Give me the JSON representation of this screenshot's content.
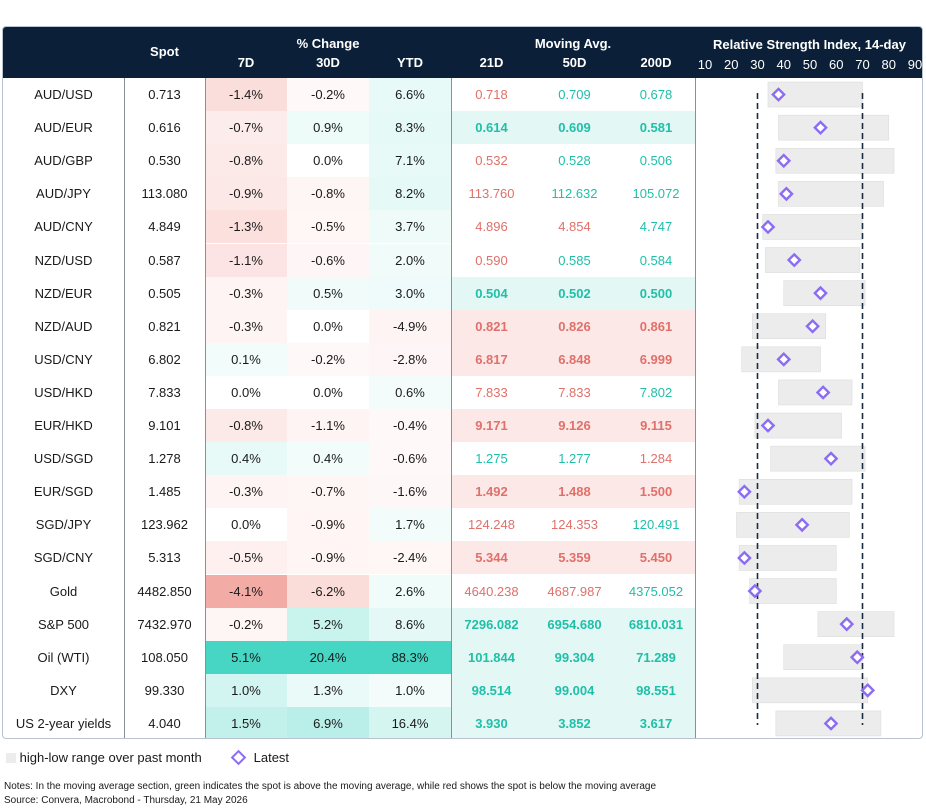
{
  "header": {
    "spot": "Spot",
    "pct_change": "% Change",
    "d7": "7D",
    "d30": "30D",
    "ytd": "YTD",
    "moving_avg": "Moving Avg.",
    "ma21": "21D",
    "ma50": "50D",
    "ma200": "200D",
    "rsi_title": "Relative Strength Index, 14-day",
    "rsi_ticks": [
      "10",
      "20",
      "30",
      "40",
      "50",
      "60",
      "70",
      "80",
      "90"
    ]
  },
  "colors": {
    "header_bg": "#0b2038",
    "ma_up": "#1fbfa8",
    "ma_down": "#e0706a",
    "rsi_range": "#ececec",
    "rsi_marker": "#8b6cf2"
  },
  "rows": [
    {
      "name": "AUD/USD",
      "spot": "0.713",
      "d7": "-1.4%",
      "d30": "-0.2%",
      "ytd": "6.6%",
      "ma21": "0.718",
      "ma50": "0.709",
      "ma200": "0.678"
    },
    {
      "name": "AUD/EUR",
      "spot": "0.616",
      "d7": "-0.7%",
      "d30": "0.9%",
      "ytd": "8.3%",
      "ma21": "0.614",
      "ma50": "0.609",
      "ma200": "0.581"
    },
    {
      "name": "AUD/GBP",
      "spot": "0.530",
      "d7": "-0.8%",
      "d30": "0.0%",
      "ytd": "7.1%",
      "ma21": "0.532",
      "ma50": "0.528",
      "ma200": "0.506"
    },
    {
      "name": "AUD/JPY",
      "spot": "113.080",
      "d7": "-0.9%",
      "d30": "-0.8%",
      "ytd": "8.2%",
      "ma21": "113.760",
      "ma50": "112.632",
      "ma200": "105.072"
    },
    {
      "name": "AUD/CNY",
      "spot": "4.849",
      "d7": "-1.3%",
      "d30": "-0.5%",
      "ytd": "3.7%",
      "ma21": "4.896",
      "ma50": "4.854",
      "ma200": "4.747"
    },
    {
      "name": "NZD/USD",
      "spot": "0.587",
      "d7": "-1.1%",
      "d30": "-0.6%",
      "ytd": "2.0%",
      "ma21": "0.590",
      "ma50": "0.585",
      "ma200": "0.584"
    },
    {
      "name": "NZD/EUR",
      "spot": "0.505",
      "d7": "-0.3%",
      "d30": "0.5%",
      "ytd": "3.0%",
      "ma21": "0.504",
      "ma50": "0.502",
      "ma200": "0.500"
    },
    {
      "name": "NZD/AUD",
      "spot": "0.821",
      "d7": "-0.3%",
      "d30": "0.0%",
      "ytd": "-4.9%",
      "ma21": "0.821",
      "ma50": "0.826",
      "ma200": "0.861"
    },
    {
      "name": "USD/CNY",
      "spot": "6.802",
      "d7": "0.1%",
      "d30": "-0.2%",
      "ytd": "-2.8%",
      "ma21": "6.817",
      "ma50": "6.848",
      "ma200": "6.999"
    },
    {
      "name": "USD/HKD",
      "spot": "7.833",
      "d7": "0.0%",
      "d30": "0.0%",
      "ytd": "0.6%",
      "ma21": "7.833",
      "ma50": "7.833",
      "ma200": "7.802"
    },
    {
      "name": "EUR/HKD",
      "spot": "9.101",
      "d7": "-0.8%",
      "d30": "-1.1%",
      "ytd": "-0.4%",
      "ma21": "9.171",
      "ma50": "9.126",
      "ma200": "9.115"
    },
    {
      "name": "USD/SGD",
      "spot": "1.278",
      "d7": "0.4%",
      "d30": "0.4%",
      "ytd": "-0.6%",
      "ma21": "1.275",
      "ma50": "1.277",
      "ma200": "1.284"
    },
    {
      "name": "EUR/SGD",
      "spot": "1.485",
      "d7": "-0.3%",
      "d30": "-0.7%",
      "ytd": "-1.6%",
      "ma21": "1.492",
      "ma50": "1.488",
      "ma200": "1.500"
    },
    {
      "name": "SGD/JPY",
      "spot": "123.962",
      "d7": "0.0%",
      "d30": "-0.9%",
      "ytd": "1.7%",
      "ma21": "124.248",
      "ma50": "124.353",
      "ma200": "120.491"
    },
    {
      "name": "SGD/CNY",
      "spot": "5.313",
      "d7": "-0.5%",
      "d30": "-0.9%",
      "ytd": "-2.4%",
      "ma21": "5.344",
      "ma50": "5.359",
      "ma200": "5.450"
    },
    {
      "name": "Gold",
      "spot": "4482.850",
      "d7": "-4.1%",
      "d30": "-6.2%",
      "ytd": "2.6%",
      "ma21": "4640.238",
      "ma50": "4687.987",
      "ma200": "4375.052"
    },
    {
      "name": "S&P 500",
      "spot": "7432.970",
      "d7": "-0.2%",
      "d30": "5.2%",
      "ytd": "8.6%",
      "ma21": "7296.082",
      "ma50": "6954.680",
      "ma200": "6810.031"
    },
    {
      "name": "Oil (WTI)",
      "spot": "108.050",
      "d7": "5.1%",
      "d30": "20.4%",
      "ytd": "88.3%",
      "ma21": "101.844",
      "ma50": "99.304",
      "ma200": "71.289"
    },
    {
      "name": "DXY",
      "spot": "99.330",
      "d7": "1.0%",
      "d30": "1.3%",
      "ytd": "1.0%",
      "ma21": "98.514",
      "ma50": "99.004",
      "ma200": "98.551"
    },
    {
      "name": "US 2-year yields",
      "spot": "4.040",
      "d7": "1.5%",
      "d30": "6.9%",
      "ytd": "16.4%",
      "ma21": "3.930",
      "ma50": "3.852",
      "ma200": "3.617"
    }
  ],
  "legend": {
    "range_label": "high-low range over past month",
    "latest_label": "Latest"
  },
  "notes": {
    "line1": "Notes: In the moving average section, green indicates the spot is above the moving average, while red shows the spot is below the moving average",
    "line2": "Source: Convera, Macrobond - Thursday, 21 May 2026"
  },
  "chart_data": {
    "type": "table",
    "title": "Relative Strength Index, 14-day",
    "xlim": [
      10,
      90
    ],
    "reference_lines": [
      30,
      70
    ],
    "series": [
      {
        "name": "AUD/USD",
        "low": 34,
        "high": 70,
        "latest": 38
      },
      {
        "name": "AUD/EUR",
        "low": 38,
        "high": 80,
        "latest": 54
      },
      {
        "name": "AUD/GBP",
        "low": 37,
        "high": 82,
        "latest": 40
      },
      {
        "name": "AUD/JPY",
        "low": 38,
        "high": 78,
        "latest": 41
      },
      {
        "name": "AUD/CNY",
        "low": 32,
        "high": 70,
        "latest": 34
      },
      {
        "name": "NZD/USD",
        "low": 33,
        "high": 69,
        "latest": 44
      },
      {
        "name": "NZD/EUR",
        "low": 40,
        "high": 71,
        "latest": 54
      },
      {
        "name": "NZD/AUD",
        "low": 28,
        "high": 56,
        "latest": 51
      },
      {
        "name": "USD/CNY",
        "low": 24,
        "high": 54,
        "latest": 40
      },
      {
        "name": "USD/HKD",
        "low": 38,
        "high": 66,
        "latest": 55
      },
      {
        "name": "EUR/HKD",
        "low": 29,
        "high": 62,
        "latest": 34
      },
      {
        "name": "USD/SGD",
        "low": 35,
        "high": 71,
        "latest": 58
      },
      {
        "name": "EUR/SGD",
        "low": 23,
        "high": 66,
        "latest": 25
      },
      {
        "name": "SGD/JPY",
        "low": 22,
        "high": 65,
        "latest": 47
      },
      {
        "name": "SGD/CNY",
        "low": 23,
        "high": 60,
        "latest": 25
      },
      {
        "name": "Gold",
        "low": 27,
        "high": 60,
        "latest": 29
      },
      {
        "name": "S&P 500",
        "low": 53,
        "high": 82,
        "latest": 64
      },
      {
        "name": "Oil (WTI)",
        "low": 40,
        "high": 70,
        "latest": 68
      },
      {
        "name": "DXY",
        "low": 28,
        "high": 72,
        "latest": 72
      },
      {
        "name": "US 2-year yields",
        "low": 37,
        "high": 77,
        "latest": 58
      }
    ]
  }
}
